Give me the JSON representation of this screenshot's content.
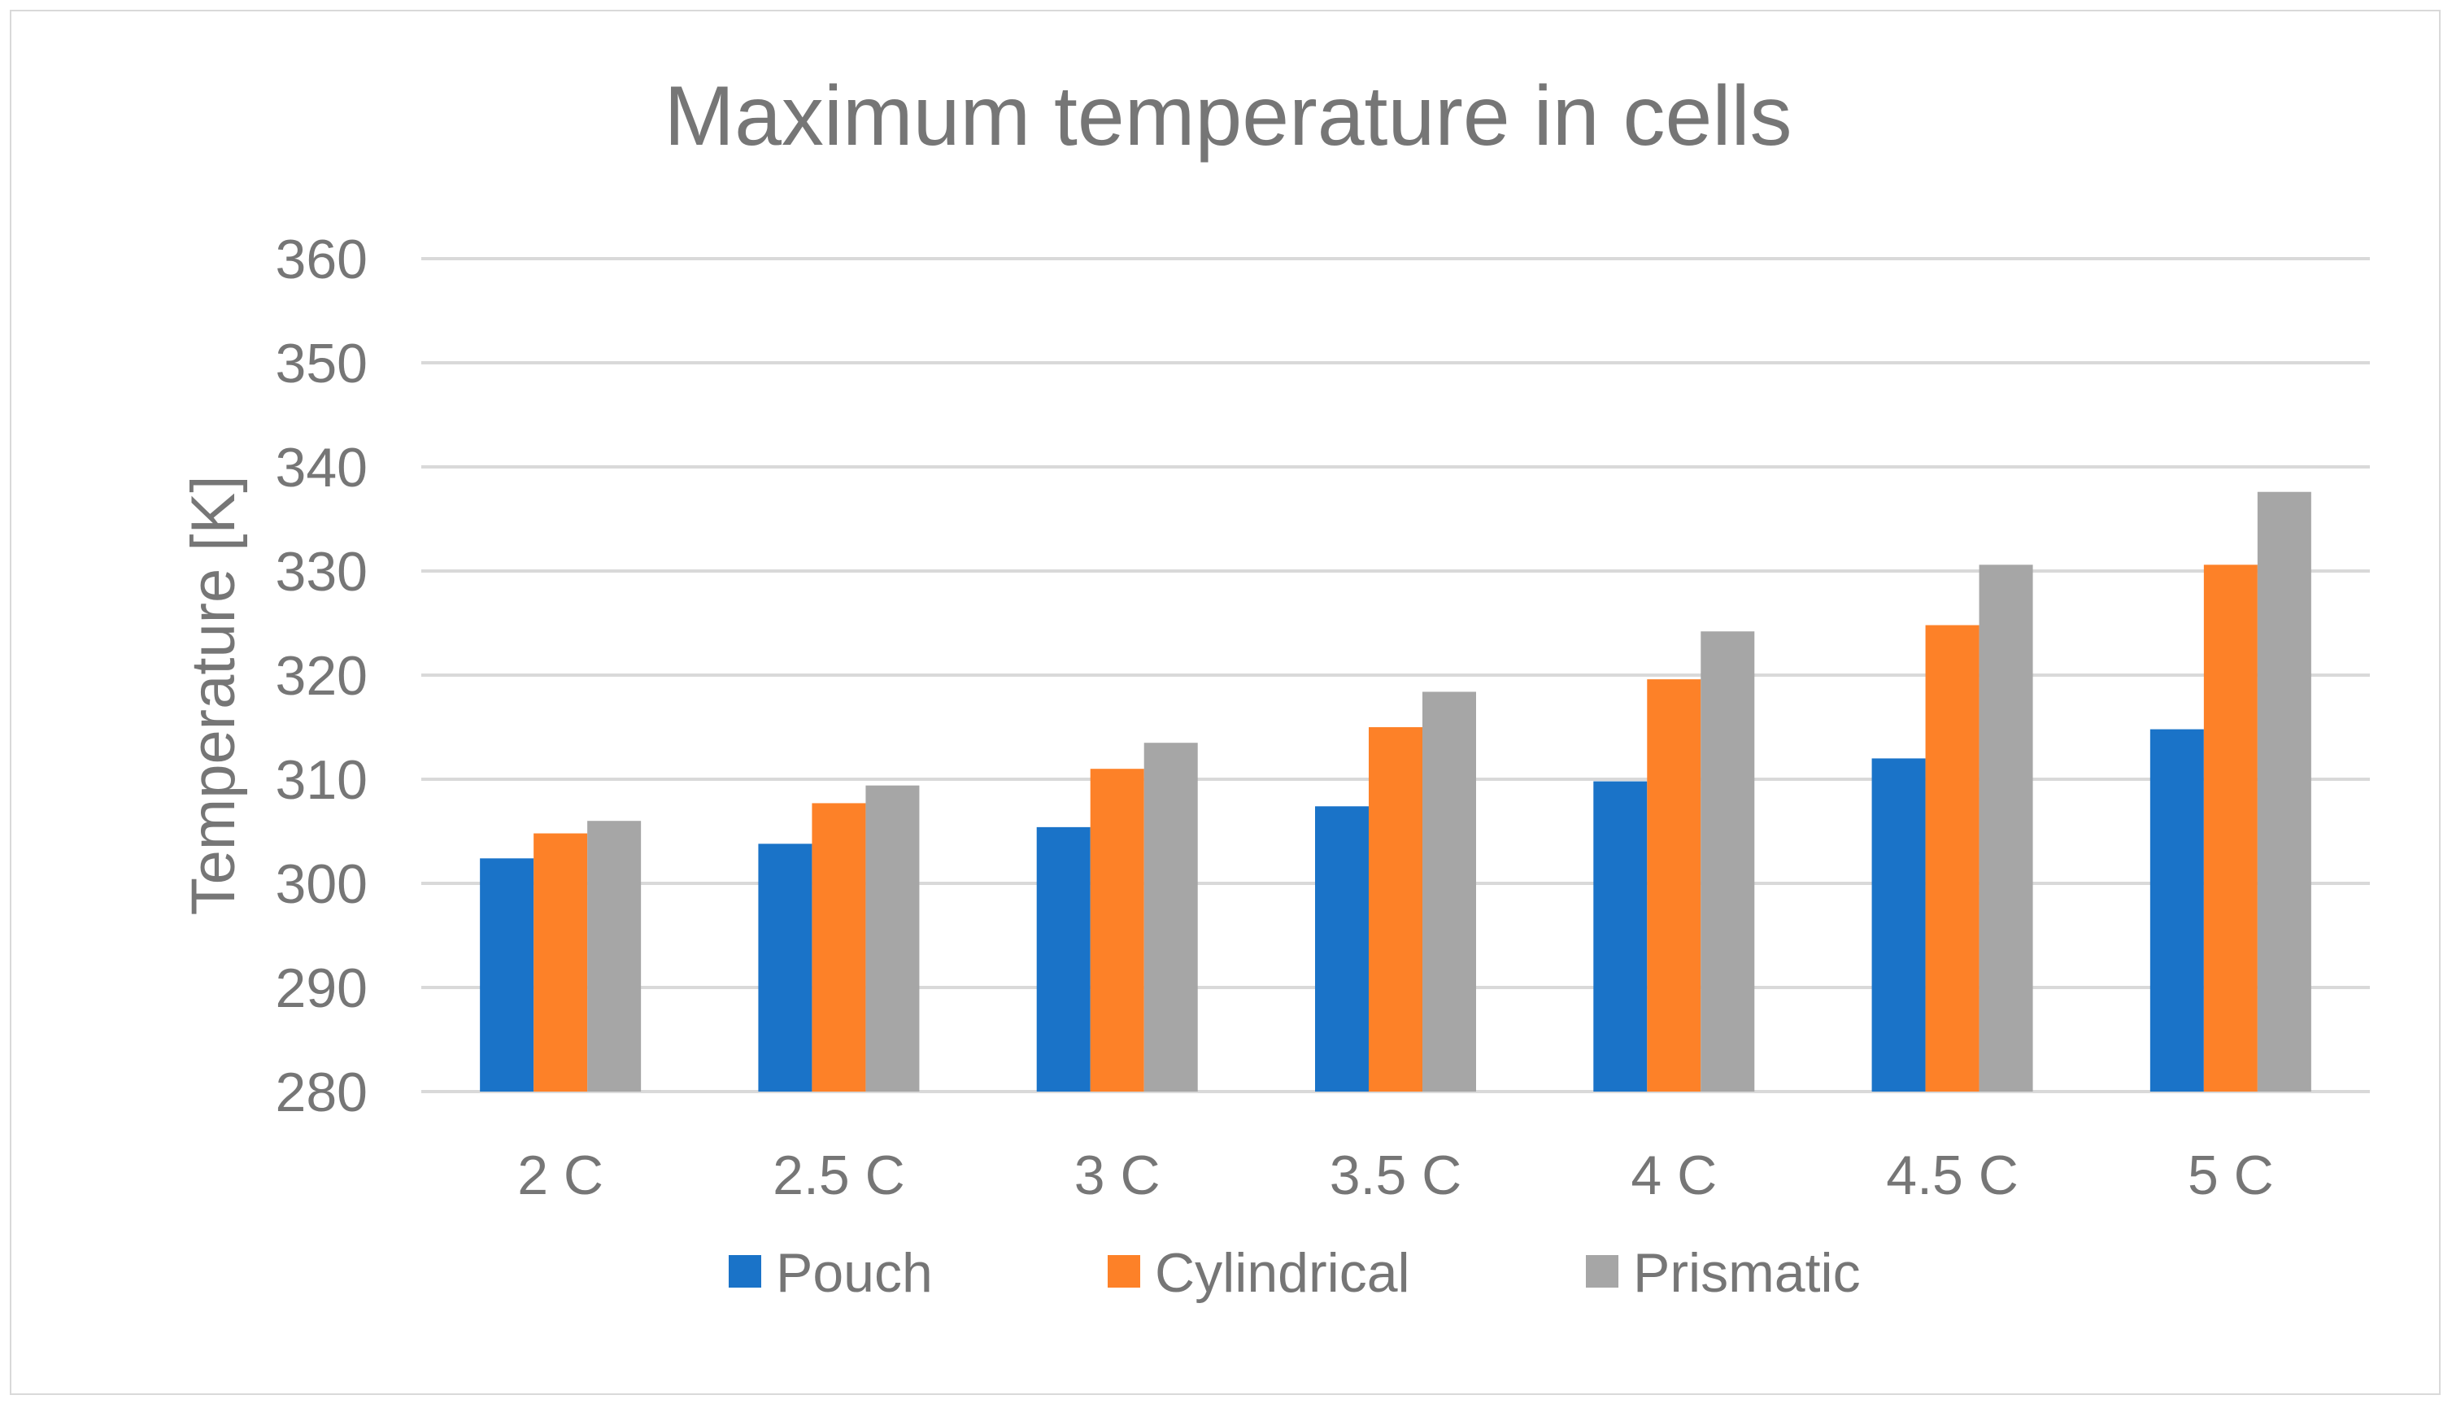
{
  "chart_data": {
    "type": "bar",
    "title": "Maximum temperature in cells",
    "xlabel": "",
    "ylabel": "Temperature [K]",
    "categories": [
      "2 C",
      "2.5 C",
      "3 C",
      "3.5 C",
      "4 C",
      "4.5 C",
      "5 C"
    ],
    "ylim": [
      280,
      360
    ],
    "yticks": [
      280,
      290,
      300,
      310,
      320,
      330,
      340,
      350,
      360
    ],
    "grid": true,
    "legend_position": "bottom",
    "series": [
      {
        "name": "Pouch",
        "color": "#1a73c8",
        "values": [
          302.4,
          303.8,
          305.4,
          307.4,
          309.8,
          312.0,
          314.8
        ]
      },
      {
        "name": "Cylindrical",
        "color": "#fd8128",
        "values": [
          304.8,
          307.7,
          311.0,
          315.0,
          319.6,
          324.8,
          330.6
        ]
      },
      {
        "name": "Prismatic",
        "color": "#a6a6a6",
        "values": [
          306.0,
          309.4,
          313.5,
          318.4,
          324.2,
          330.6,
          337.6
        ]
      }
    ]
  }
}
